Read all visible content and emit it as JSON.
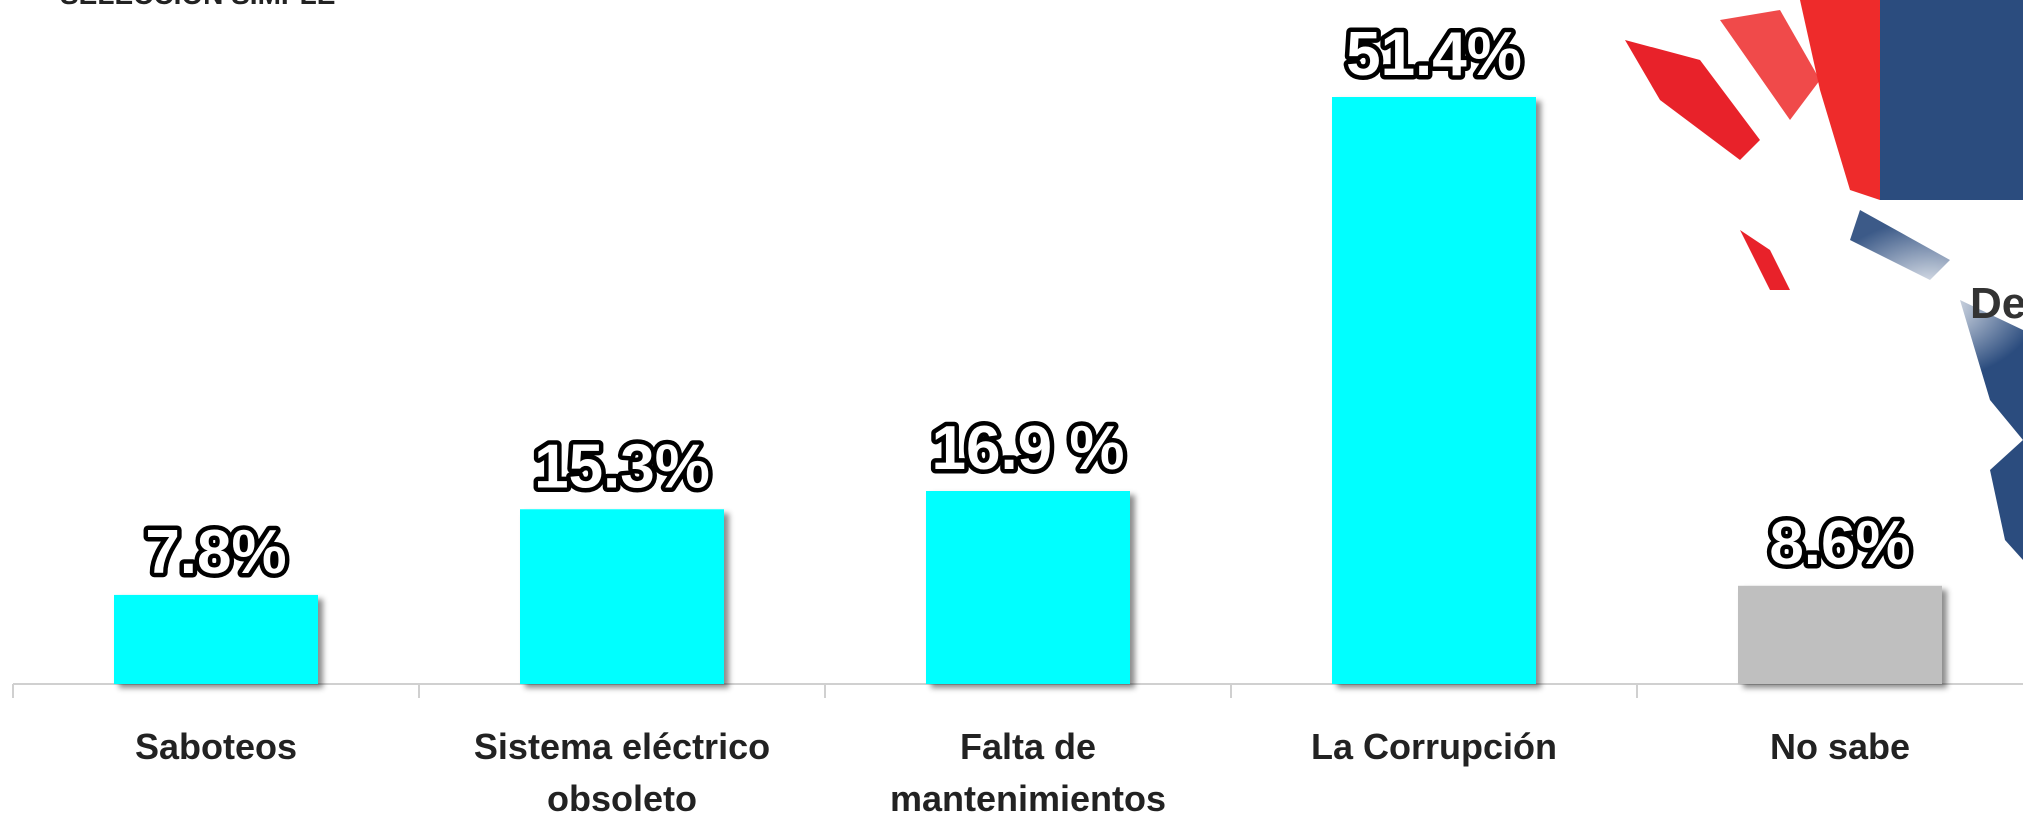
{
  "chart_data": {
    "type": "bar",
    "title": "SELECCIÓN SIMPLE",
    "categories": [
      "Saboteos",
      "Sistema eléctrico obsoleto",
      "Falta de mantenimientos",
      "La Corrupción",
      "No sabe"
    ],
    "values": [
      7.8,
      15.3,
      16.9,
      51.4,
      8.6
    ],
    "value_labels": [
      "7.8%",
      "15.3%",
      "16.9 %",
      "51.4%",
      "8.6%"
    ],
    "colors": [
      "#00ffff",
      "#00ffff",
      "#00ffff",
      "#00ffff",
      "#bfbfbf"
    ],
    "decoration_text": "De"
  }
}
